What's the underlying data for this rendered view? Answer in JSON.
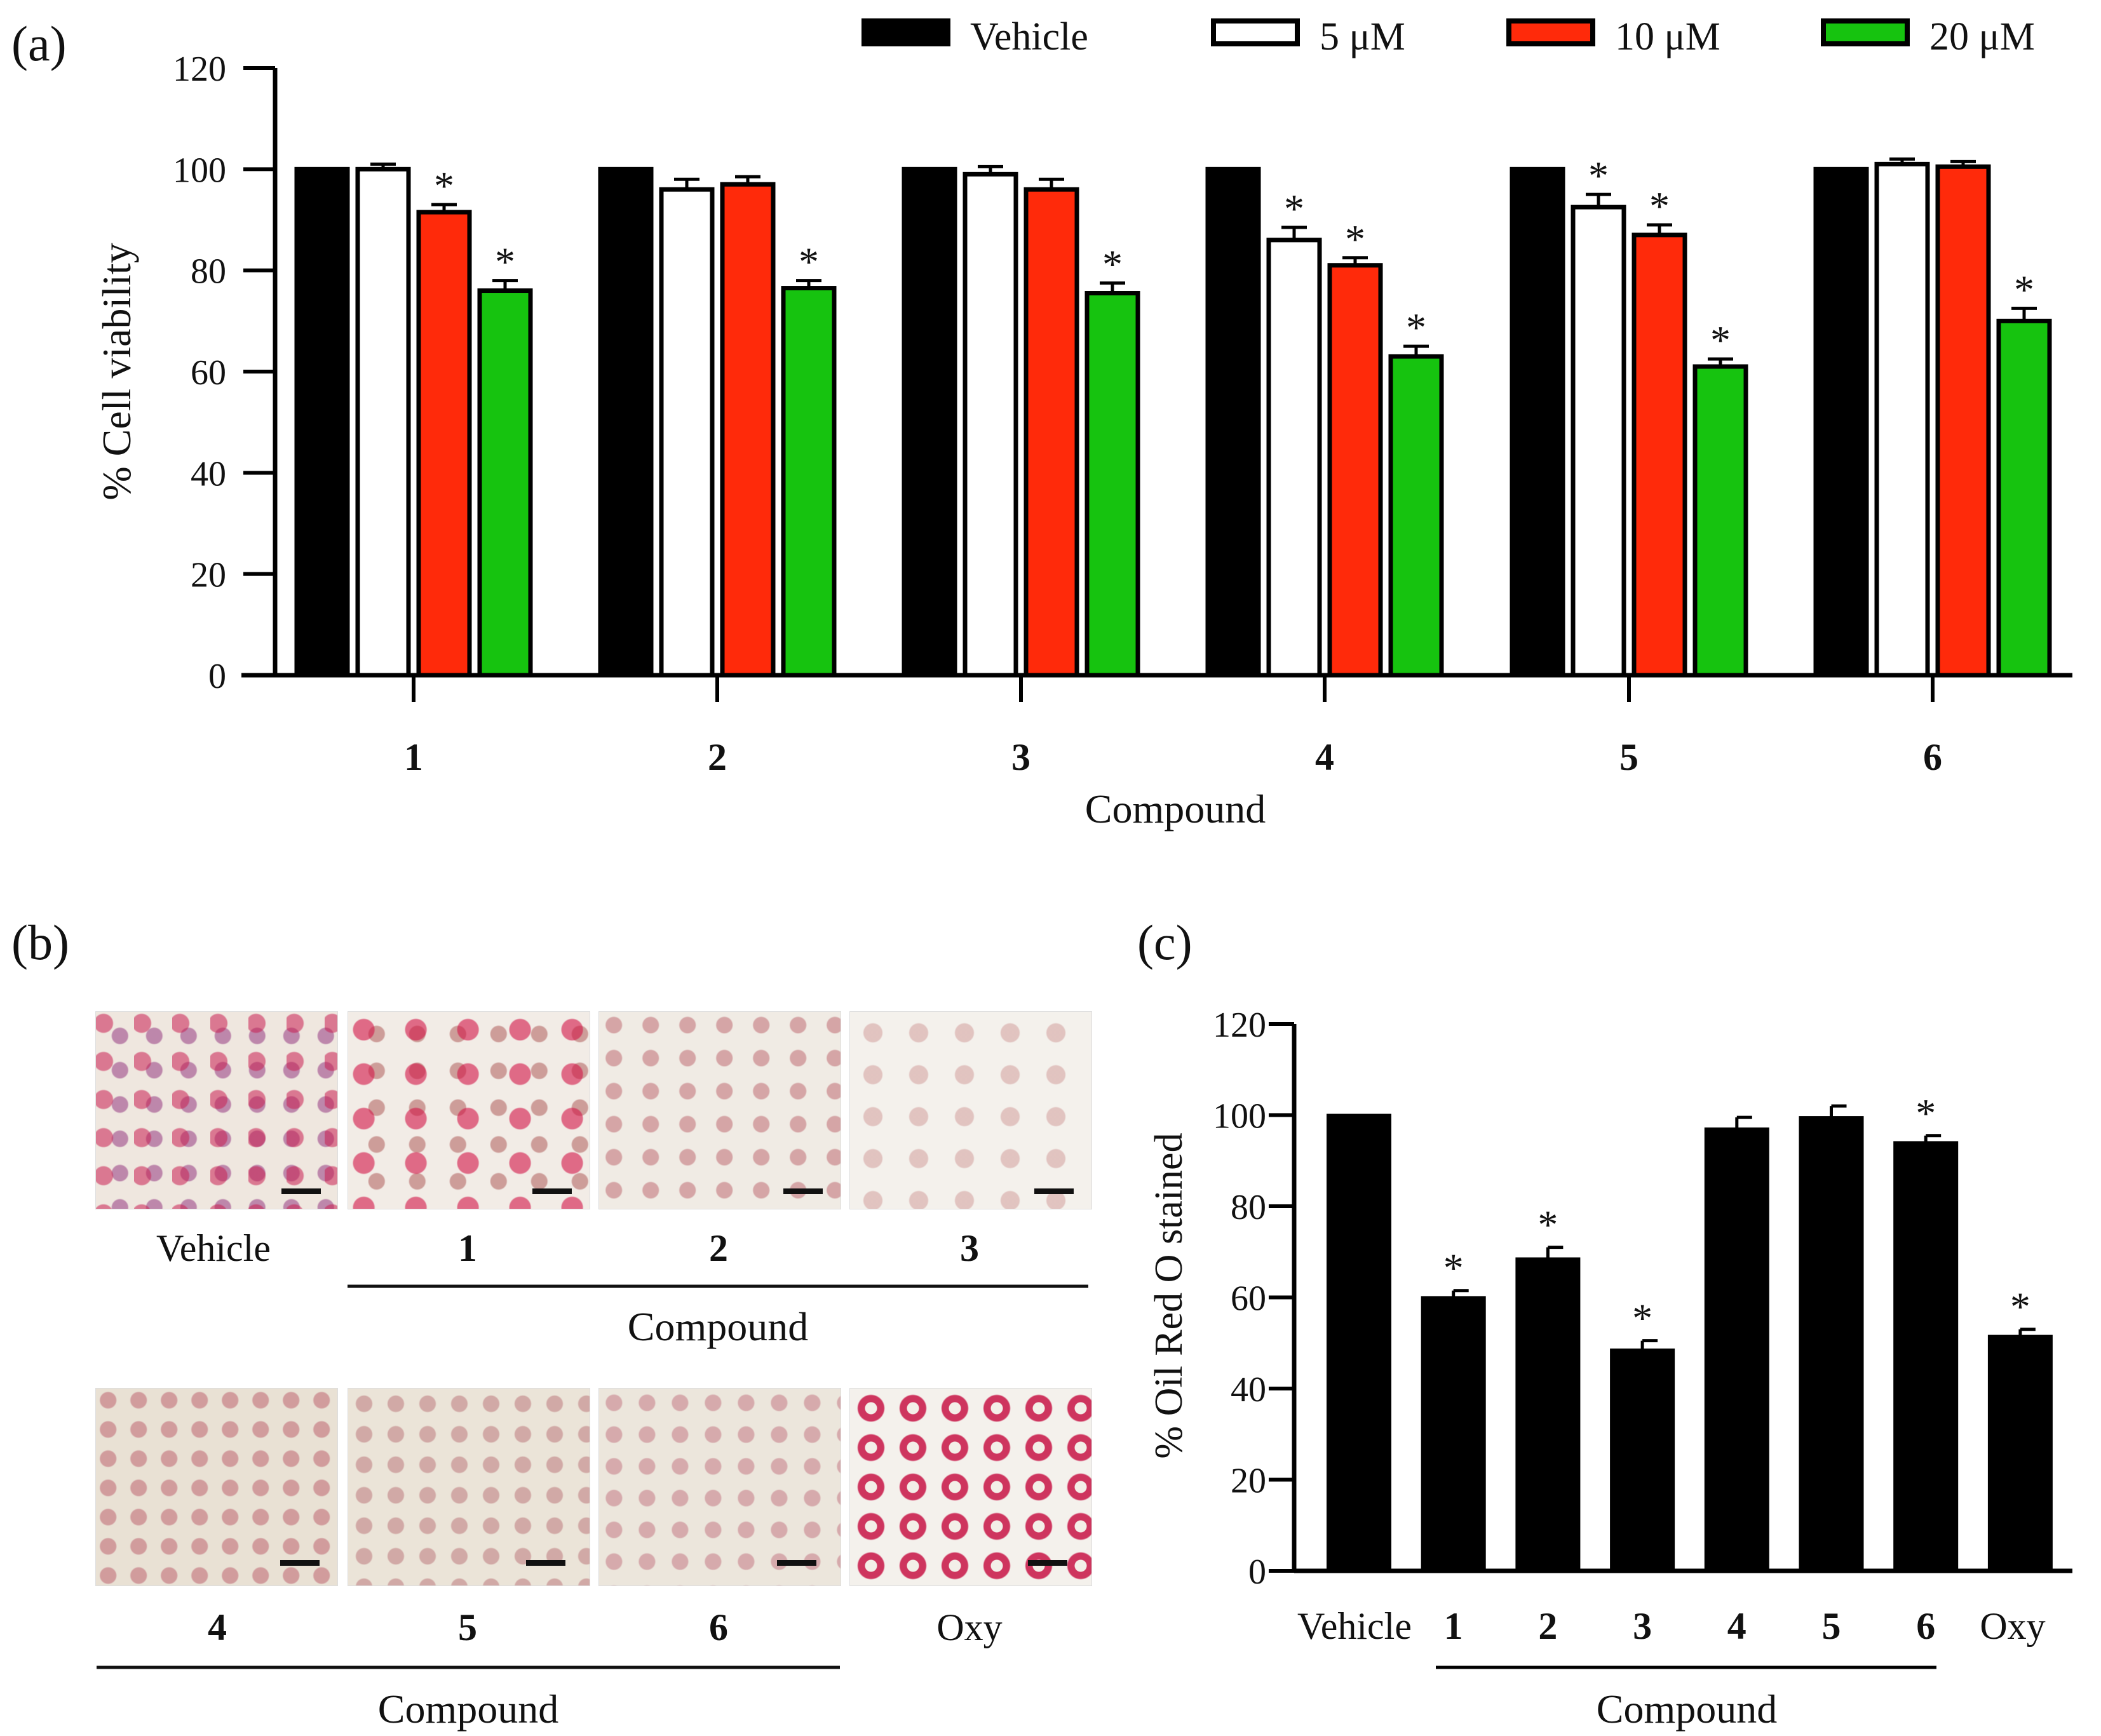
{
  "panels": {
    "a": {
      "label": "(a)"
    },
    "b": {
      "label": "(b)"
    },
    "c": {
      "label": "(c)"
    }
  },
  "legend": [
    {
      "name": "Vehicle",
      "color": "#000000"
    },
    {
      "name": "5 μM",
      "color": "#ffffff"
    },
    {
      "name": "10 μM",
      "color": "#ff2a0a"
    },
    {
      "name": "20 μM",
      "color": "#16c30f"
    }
  ],
  "chart_data": [
    {
      "id": "a",
      "type": "bar",
      "xlabel": "Compound",
      "ylabel": "% Cell viability",
      "ylim": [
        0,
        120
      ],
      "yticks": [
        0,
        20,
        40,
        60,
        80,
        100,
        120
      ],
      "categories": [
        "1",
        "2",
        "3",
        "4",
        "5",
        "6"
      ],
      "significance_marker": "*",
      "series": [
        {
          "name": "Vehicle",
          "values": [
            100,
            100,
            100,
            100,
            100,
            100
          ],
          "errors": [
            0,
            0,
            0,
            0,
            0,
            0
          ],
          "significant": [
            false,
            false,
            false,
            false,
            false,
            false
          ]
        },
        {
          "name": "5 μM",
          "values": [
            100,
            96,
            99,
            86,
            92.5,
            101
          ],
          "errors": [
            1,
            2,
            1.5,
            2.5,
            2.5,
            1
          ],
          "significant": [
            false,
            false,
            false,
            true,
            true,
            false
          ]
        },
        {
          "name": "10 μM",
          "values": [
            91.5,
            97,
            96,
            81,
            87,
            100.5
          ],
          "errors": [
            1.5,
            1.5,
            2,
            1.5,
            2,
            1
          ],
          "significant": [
            true,
            false,
            false,
            true,
            true,
            false
          ]
        },
        {
          "name": "20 μM",
          "values": [
            76,
            76.5,
            75.5,
            63,
            61,
            70
          ],
          "errors": [
            2,
            1.5,
            2,
            2,
            1.5,
            2.5
          ],
          "significant": [
            true,
            true,
            true,
            true,
            true,
            true
          ]
        }
      ]
    },
    {
      "id": "c",
      "type": "bar",
      "xlabel": "Compound",
      "ylabel": "% Oil Red O stained",
      "ylim": [
        0,
        120
      ],
      "yticks": [
        0,
        20,
        40,
        60,
        80,
        100,
        120
      ],
      "categories": [
        "Vehicle",
        "1",
        "2",
        "3",
        "4",
        "5",
        "6",
        "Oxy"
      ],
      "bold_categories": [
        "1",
        "2",
        "3",
        "4",
        "5",
        "6"
      ],
      "compound_group_label": "Compound",
      "significance_marker": "*",
      "values": [
        100,
        60,
        68.5,
        48.5,
        97,
        99.5,
        94,
        51.5
      ],
      "errors": [
        0,
        1.5,
        2.5,
        2,
        2.5,
        2.5,
        1.5,
        1.5
      ],
      "significant": [
        false,
        true,
        true,
        true,
        false,
        false,
        true,
        true
      ]
    }
  ],
  "micrographs": {
    "row1": [
      {
        "label": "Vehicle",
        "bold": false
      },
      {
        "label": "1",
        "bold": true
      },
      {
        "label": "2",
        "bold": true
      },
      {
        "label": "3",
        "bold": true
      }
    ],
    "row1_group_label": "Compound",
    "row2": [
      {
        "label": "4",
        "bold": true
      },
      {
        "label": "5",
        "bold": true
      },
      {
        "label": "6",
        "bold": true
      },
      {
        "label": "Oxy",
        "bold": false
      }
    ],
    "row2_group_label": "Compound"
  }
}
